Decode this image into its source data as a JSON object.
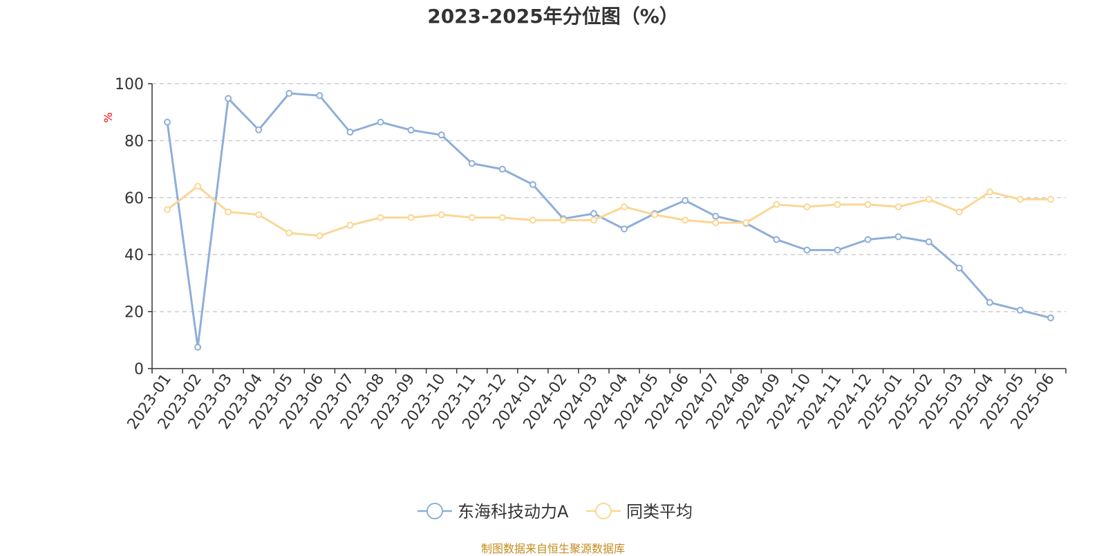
{
  "chart_data": {
    "type": "line",
    "title": "2023-2025年分位图（%）",
    "ylabel": "%",
    "ylim": [
      0,
      100
    ],
    "yticks": [
      "0",
      "20",
      "40",
      "60",
      "80",
      "100"
    ],
    "grid": "horizontal dashed",
    "legend_position": "bottom-center",
    "categories": [
      "2023-01",
      "2023-02",
      "2023-03",
      "2023-04",
      "2023-05",
      "2023-06",
      "2023-07",
      "2023-08",
      "2023-09",
      "2023-10",
      "2023-11",
      "2023-12",
      "2024-01",
      "2024-02",
      "2024-03",
      "2024-04",
      "2024-05",
      "2024-06",
      "2024-07",
      "2024-08",
      "2024-09",
      "2024-10",
      "2024-11",
      "2024-12",
      "2025-01",
      "2025-02",
      "2025-03",
      "2025-04",
      "2025-05",
      "2025-06"
    ],
    "series": [
      {
        "name": "东海科技动力A",
        "color": "#8eaed9",
        "values": [
          86.5,
          7.5,
          94.8,
          83.8,
          96.6,
          95.8,
          83.0,
          86.5,
          83.7,
          82.0,
          72.0,
          70.0,
          64.6,
          52.6,
          54.4,
          49.0,
          54.4,
          59.0,
          53.5,
          51.0,
          45.3,
          41.6,
          41.6,
          45.3,
          46.3,
          44.5,
          35.3,
          23.2,
          20.5,
          17.8
        ]
      },
      {
        "name": "同类平均",
        "color": "#fbd694",
        "values": [
          55.8,
          64.0,
          55.0,
          54.0,
          47.6,
          46.6,
          50.3,
          53.0,
          53.0,
          54.0,
          53.0,
          53.0,
          52.1,
          52.1,
          52.1,
          56.8,
          54.0,
          52.1,
          51.2,
          51.2,
          57.6,
          56.8,
          57.6,
          57.6,
          56.8,
          59.4,
          55.0,
          62.0,
          59.4,
          59.4
        ]
      }
    ]
  },
  "footer": {
    "source": "制图数据来自恒生聚源数据库"
  }
}
